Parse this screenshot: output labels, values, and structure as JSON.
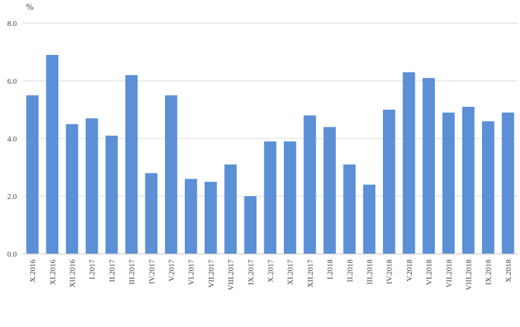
{
  "chart_data": {
    "type": "bar",
    "ylabel": "%",
    "ylim": [
      0,
      8
    ],
    "yticks": [
      "0.0",
      "2.0",
      "4.0",
      "6.0",
      "8.0"
    ],
    "grid": true,
    "legend": "none",
    "bar_color": "#5b8fd6",
    "grid_color": "#d9d9d9",
    "axis_color": "#bfbfbf",
    "categories": [
      "X.2016",
      "XI.2016",
      "XII.2016",
      "I.2017",
      "II.2017",
      "III.2017",
      "IV.2017",
      "V.2017",
      "VI.2017",
      "VII.2017",
      "VIII.2017",
      "IX.2017",
      "X.2017",
      "XI.2017",
      "XII.2017",
      "I.2018",
      "II.2018",
      "III.2018",
      "IV.2018",
      "V.2018",
      "VI.2018",
      "VII.2018",
      "VIII.2018",
      "IX.2018",
      "X.2018"
    ],
    "values": [
      5.5,
      6.9,
      4.5,
      4.7,
      4.1,
      6.2,
      2.8,
      5.5,
      2.6,
      2.5,
      3.1,
      2.0,
      3.9,
      3.9,
      4.8,
      4.4,
      3.1,
      2.4,
      5.0,
      6.3,
      6.1,
      4.9,
      5.1,
      4.6,
      4.9
    ]
  }
}
